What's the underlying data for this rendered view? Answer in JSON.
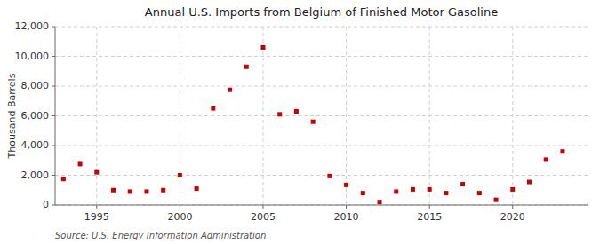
{
  "chart_data": {
    "type": "scatter",
    "title": "Annual U.S. Imports from Belgium of Finished Motor Gasoline",
    "ylabel": "Thousand Barrels",
    "annotations": [
      "Source: U.S. Energy Information Administration"
    ],
    "x": [
      1993,
      1994,
      1995,
      1996,
      1997,
      1998,
      1999,
      2000,
      2001,
      2002,
      2003,
      2004,
      2005,
      2006,
      2007,
      2008,
      2009,
      2010,
      2011,
      2012,
      2013,
      2014,
      2015,
      2016,
      2017,
      2018,
      2019,
      2020,
      2021,
      2022,
      2023
    ],
    "values": [
      1750,
      2750,
      2200,
      1000,
      900,
      900,
      1000,
      2000,
      1100,
      6500,
      7750,
      9300,
      10600,
      6100,
      6300,
      5600,
      1950,
      1350,
      800,
      200,
      900,
      1050,
      1050,
      800,
      1400,
      800,
      350,
      1050,
      1550,
      3050,
      3600
    ],
    "color": "#cc0000",
    "marker": "square",
    "xlim": [
      1992.5,
      2024.5
    ],
    "xticks": [
      1995,
      2000,
      2005,
      2010,
      2015,
      2020
    ],
    "ylim": [
      0,
      12000
    ],
    "yticks": [
      0,
      {
        "value": 2000,
        "label": "2,000"
      },
      {
        "value": 4000,
        "label": "4,000"
      },
      {
        "value": 6000,
        "label": "6,000"
      },
      {
        "value": 8000,
        "label": "8,000"
      },
      {
        "value": 10000,
        "label": "10,000"
      },
      {
        "value": 12000,
        "label": "12,000"
      }
    ],
    "grid": true
  }
}
